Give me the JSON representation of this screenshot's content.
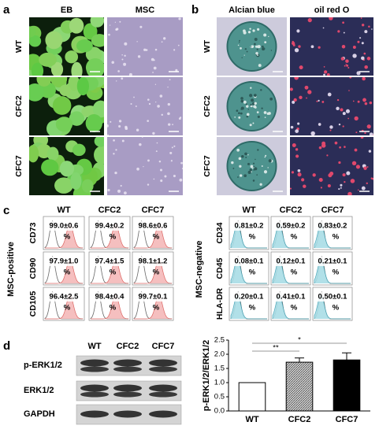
{
  "panels": {
    "a": {
      "label": "a",
      "columns": [
        "EB",
        "MSC"
      ],
      "rows": [
        "WT",
        "CFC2",
        "CFC7"
      ]
    },
    "b": {
      "label": "b",
      "columns": [
        "Alcian blue",
        "oil red O"
      ],
      "rows": [
        "WT",
        "CFC2",
        "CFC7"
      ]
    },
    "c": {
      "label": "c",
      "groups": [
        {
          "title": "MSC-positive",
          "columns": [
            "WT",
            "CFC2",
            "CFC7"
          ],
          "rows": [
            {
              "marker": "CD73",
              "cells": [
                {
                  "value": "99.0±0.6",
                  "unit": "%"
                },
                {
                  "value": "99.4±0.2",
                  "unit": "%"
                },
                {
                  "value": "98.6±0.6",
                  "unit": "%"
                }
              ]
            },
            {
              "marker": "CD90",
              "cells": [
                {
                  "value": "97.9±1.0",
                  "unit": "%"
                },
                {
                  "value": "97.4±1.5",
                  "unit": "%"
                },
                {
                  "value": "98.1±1.2",
                  "unit": "%"
                }
              ]
            },
            {
              "marker": "CD105",
              "cells": [
                {
                  "value": "96.4±2.5",
                  "unit": "%"
                },
                {
                  "value": "98.4±0.4",
                  "unit": "%"
                },
                {
                  "value": "99.7±0.1",
                  "unit": "%"
                }
              ]
            }
          ]
        },
        {
          "title": "MSC-negative",
          "columns": [
            "WT",
            "CFC2",
            "CFC7"
          ],
          "rows": [
            {
              "marker": "CD34",
              "cells": [
                {
                  "value": "0.81±0.2",
                  "unit": "%"
                },
                {
                  "value": "0.59±0.2",
                  "unit": "%"
                },
                {
                  "value": "0.83±0.2",
                  "unit": "%"
                }
              ]
            },
            {
              "marker": "CD45",
              "cells": [
                {
                  "value": "0.08±0.1",
                  "unit": "%"
                },
                {
                  "value": "0.12±0.1",
                  "unit": "%"
                },
                {
                  "value": "0.21±0.1",
                  "unit": "%"
                }
              ]
            },
            {
              "marker": "HLA-DR",
              "cells": [
                {
                  "value": "0.20±0.1",
                  "unit": "%"
                },
                {
                  "value": "0.41±0.1",
                  "unit": "%"
                },
                {
                  "value": "0.50±0.1",
                  "unit": "%"
                }
              ]
            }
          ]
        }
      ]
    },
    "d": {
      "label": "d",
      "blot_columns": [
        "WT",
        "CFC2",
        "CFC7"
      ],
      "blot_rows": [
        "p-ERK1/2",
        "ERK1/2",
        "GAPDH"
      ]
    }
  },
  "chart_data": {
    "type": "bar",
    "ylabel": "p-ERK1/2/ERK1/2",
    "categories": [
      "WT",
      "CFC2",
      "CFC7"
    ],
    "values": [
      1.0,
      1.72,
      1.8
    ],
    "errors": [
      null,
      0.15,
      0.25
    ],
    "colors": [
      "#ffffff",
      "#9a9a9a",
      "#000000"
    ],
    "ylim": [
      0,
      2.5
    ],
    "yticks": [
      {
        "value": 0,
        "label": "0.0"
      },
      0.5,
      {
        "value": 1,
        "label": "1.0"
      },
      1.5,
      {
        "value": 2,
        "label": "2.0"
      },
      2.5
    ],
    "annotations": [
      {
        "label": "**",
        "categories": [
          "WT",
          "CFC2"
        ]
      },
      {
        "label": "*",
        "categories": [
          "WT",
          "CFC7"
        ]
      }
    ],
    "grid": false
  }
}
